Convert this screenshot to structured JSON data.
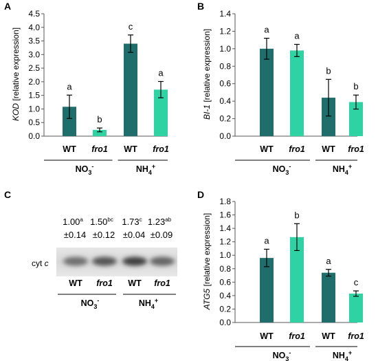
{
  "colors": {
    "wt": "#1f6e6b",
    "fro1": "#2fd3a3"
  },
  "panels": {
    "A": {
      "label": "A",
      "ylabel_italic": "KOD",
      "ylabel_rest": " [relative expression]"
    },
    "B": {
      "label": "B",
      "ylabel_italic": "BI-1",
      "ylabel_rest": " [relative expression]"
    },
    "C": {
      "label": "C"
    },
    "D": {
      "label": "D",
      "ylabel_italic": "ATG5",
      "ylabel_rest": " [relative expression]"
    }
  },
  "categories": [
    "WT",
    "fro1",
    "WT",
    "fro1"
  ],
  "groups": {
    "no3_base": "NO",
    "no3_sub": "3",
    "no3_sup": "-",
    "nh4_base": "NH",
    "nh4_sub": "4",
    "nh4_sup": "+"
  },
  "chart_data": [
    {
      "type": "bar",
      "panel": "A",
      "categories": [
        "WT",
        "fro1",
        "WT",
        "fro1"
      ],
      "values": [
        1.08,
        0.23,
        3.4,
        1.71
      ],
      "errors": [
        0.43,
        0.07,
        0.32,
        0.3
      ],
      "letters": [
        "a",
        "b",
        "c",
        "a"
      ],
      "ylabel": "KOD [relative expression]",
      "ylim": [
        0,
        4.5
      ],
      "yticks": [
        "0.0",
        "0.5",
        "1.0",
        "1.5",
        "2.0",
        "2.5",
        "3.0",
        "3.5",
        "4.0",
        "4.5"
      ]
    },
    {
      "type": "bar",
      "panel": "B",
      "categories": [
        "WT",
        "fro1",
        "WT",
        "fro1"
      ],
      "values": [
        1.0,
        0.98,
        0.44,
        0.39
      ],
      "errors": [
        0.12,
        0.07,
        0.21,
        0.08
      ],
      "letters": [
        "a",
        "a",
        "b",
        "b"
      ],
      "ylabel": "BI-1 [relative expression]",
      "ylim": [
        0,
        1.4
      ],
      "yticks": [
        "0.0",
        "0.2",
        "0.4",
        "0.6",
        "0.8",
        "1.0",
        "1.2",
        "1.4"
      ]
    },
    {
      "type": "bar",
      "panel": "D",
      "categories": [
        "WT",
        "fro1",
        "WT",
        "fro1"
      ],
      "values": [
        0.96,
        1.27,
        0.74,
        0.43
      ],
      "errors": [
        0.13,
        0.2,
        0.05,
        0.04
      ],
      "letters": [
        "a",
        "b",
        "a",
        "c"
      ],
      "ylabel": "ATG5 [relative expression]",
      "ylim": [
        0,
        1.8
      ],
      "yticks": [
        "0.0",
        "0.2",
        "0.4",
        "0.6",
        "0.8",
        "1.0",
        "1.2",
        "1.4",
        "1.6",
        "1.8"
      ]
    }
  ],
  "western_blot": {
    "label_base": "cyt ",
    "label_italic": "c",
    "lanes": [
      {
        "value": "1.00",
        "letter": "a",
        "sd": "±0.14",
        "intensity": 0.55
      },
      {
        "value": "1.50",
        "letter": "bc",
        "sd": "±0.12",
        "intensity": 0.72
      },
      {
        "value": "1.73",
        "letter": "c",
        "sd": "±0.04",
        "intensity": 0.85
      },
      {
        "value": "1.23",
        "letter": "ab",
        "sd": "±0.09",
        "intensity": 0.62
      }
    ]
  }
}
